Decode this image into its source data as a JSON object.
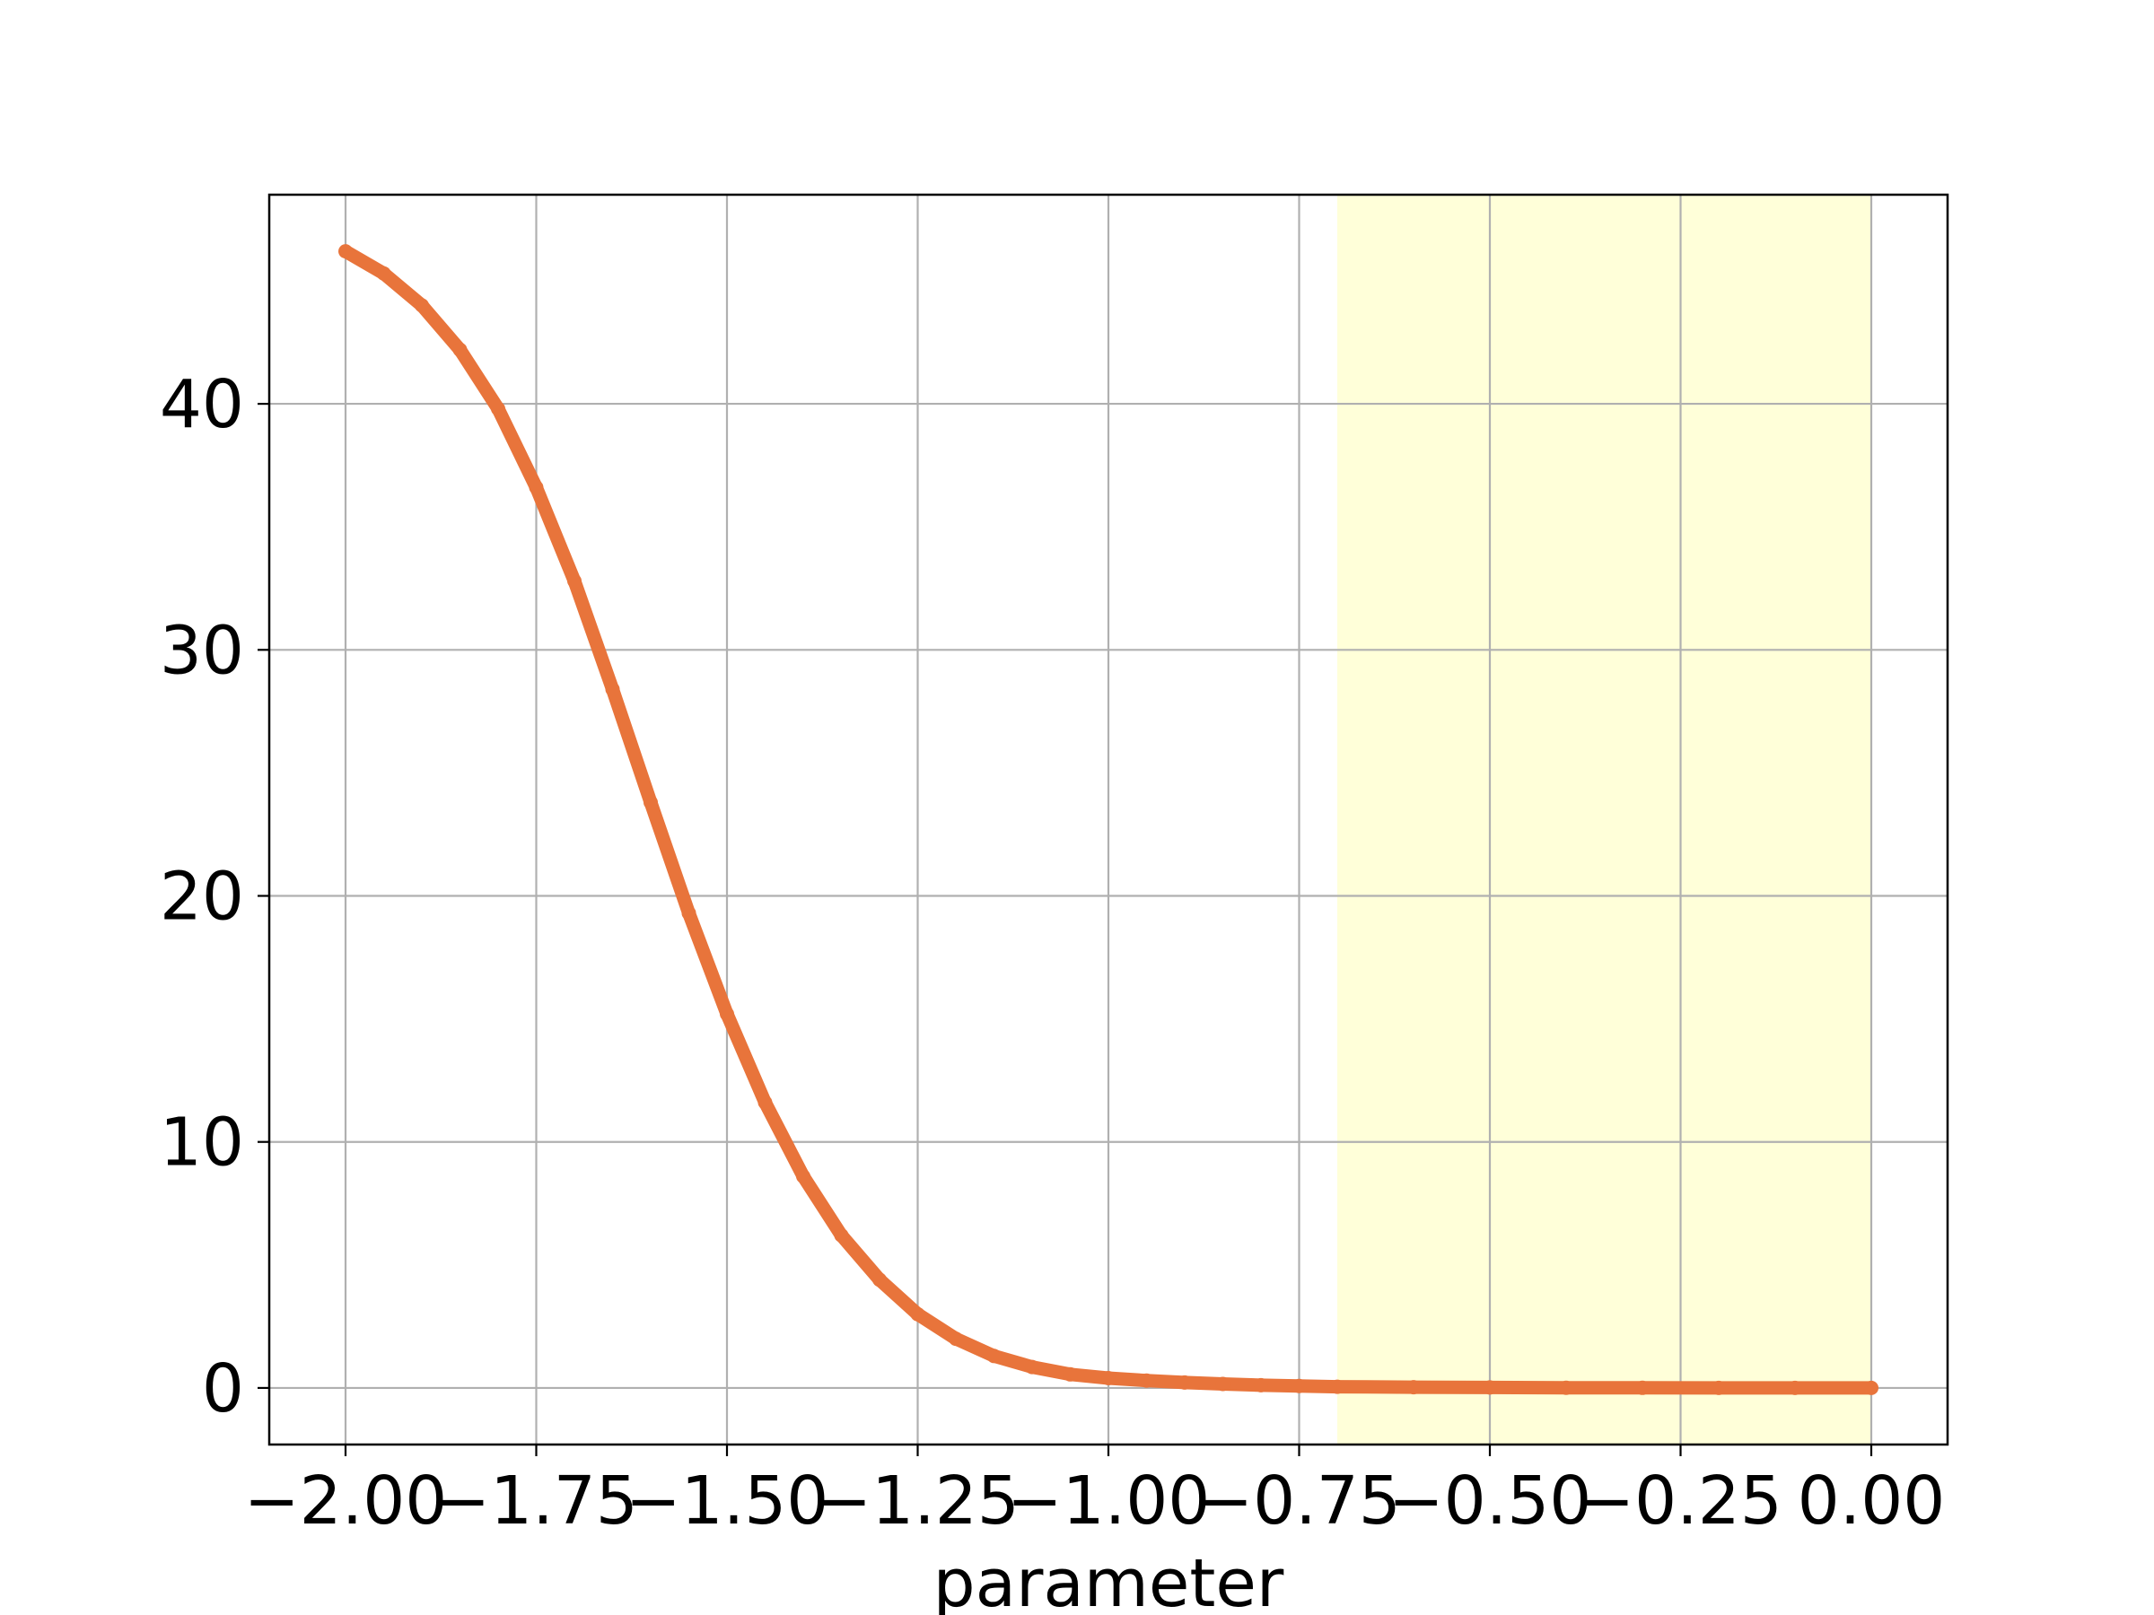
{
  "chart_data": {
    "type": "line",
    "title": "",
    "xlabel": "parameter",
    "ylabel": "",
    "xlim": [
      -2.1,
      0.1
    ],
    "ylim": [
      -2.3,
      48.5
    ],
    "grid": true,
    "xticks": [
      {
        "value": -2.0,
        "label": "−2.00"
      },
      {
        "value": -1.75,
        "label": "−1.75"
      },
      {
        "value": -1.5,
        "label": "−1.50"
      },
      {
        "value": -1.25,
        "label": "−1.25"
      },
      {
        "value": -1.0,
        "label": "−1.00"
      },
      {
        "value": -0.75,
        "label": "−0.75"
      },
      {
        "value": -0.5,
        "label": "−0.50"
      },
      {
        "value": -0.25,
        "label": "−0.25"
      },
      {
        "value": 0.0,
        "label": "0.00"
      }
    ],
    "yticks": [
      {
        "value": 0,
        "label": "0"
      },
      {
        "value": 10,
        "label": "10"
      },
      {
        "value": 20,
        "label": "20"
      },
      {
        "value": 30,
        "label": "30"
      },
      {
        "value": 40,
        "label": "40"
      }
    ],
    "highlight_band": {
      "x_start": -0.7,
      "x_end": 0.0,
      "color": "#ffffd9"
    },
    "series": [
      {
        "color": "#e8743b",
        "x": [
          -2.0,
          -1.95,
          -1.9,
          -1.85,
          -1.8,
          -1.75,
          -1.7,
          -1.65,
          -1.6,
          -1.55,
          -1.5,
          -1.45,
          -1.4,
          -1.35,
          -1.3,
          -1.25,
          -1.2,
          -1.15,
          -1.1,
          -1.05,
          -1.0,
          -0.95,
          -0.9,
          -0.85,
          -0.8,
          -0.75,
          -0.7,
          -0.6,
          -0.5,
          -0.4,
          -0.3,
          -0.2,
          -0.1,
          0.0
        ],
        "y": [
          46.2,
          45.3,
          44.0,
          42.2,
          39.8,
          36.6,
          32.8,
          28.4,
          23.8,
          19.3,
          15.2,
          11.6,
          8.6,
          6.2,
          4.4,
          3.0,
          2.0,
          1.3,
          0.85,
          0.55,
          0.4,
          0.3,
          0.22,
          0.16,
          0.11,
          0.08,
          0.05,
          0.03,
          0.02,
          0.01,
          0.005,
          0.002,
          0.001,
          0.0
        ]
      }
    ]
  }
}
